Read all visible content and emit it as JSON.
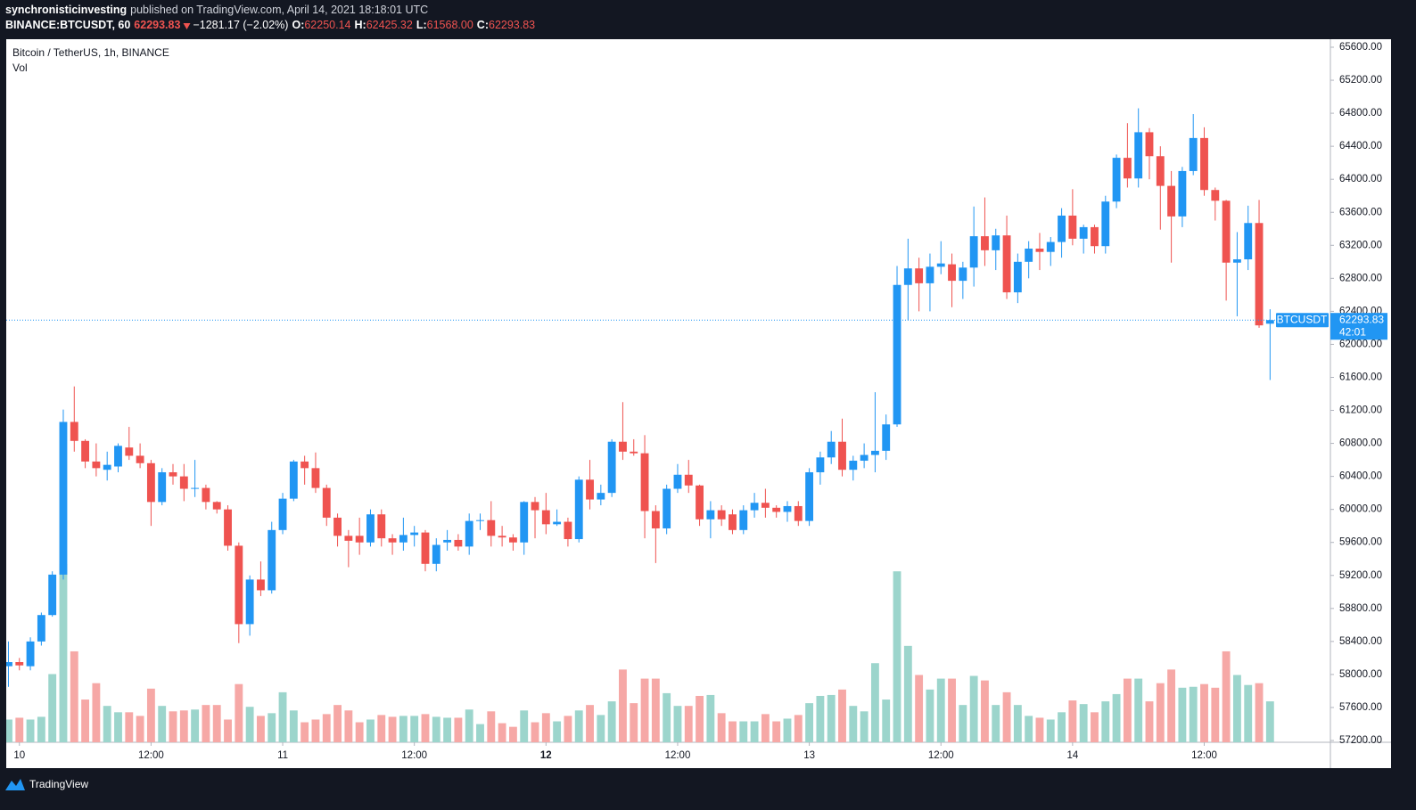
{
  "header": {
    "author": "synchronisticinvesting",
    "published": "published on TradingView.com, April 14, 2021 18:18:01 UTC"
  },
  "legend": {
    "symbol": "BINANCE:BTCUSDT, 60",
    "last": "62293.83",
    "change": "−1281.17 (−2.02%)",
    "ohlc": [
      {
        "label": "O:",
        "value": "62250.14"
      },
      {
        "label": "H:",
        "value": "62425.32"
      },
      {
        "label": "L:",
        "value": "61568.00"
      },
      {
        "label": "C:",
        "value": "62293.83"
      }
    ]
  },
  "footer": "TradingView",
  "chart_data": {
    "type": "candlestick",
    "title": "Bitcoin / TetherUS, 1h, BINANCE",
    "volume_label": "Vol",
    "price_tag": {
      "symbol": "BTCUSDT",
      "countdown": "42:01"
    },
    "up_color": "#2196f3",
    "down_color": "#ef5350",
    "volume_up_color": "#9cd5cc",
    "volume_down_color": "#f6a8a6",
    "xlim": [
      -1.2,
      119.5
    ],
    "xticks": [
      {
        "value": 0,
        "label": "10"
      },
      {
        "value": 12,
        "label": "12:00"
      },
      {
        "value": 24,
        "label": "11"
      },
      {
        "value": 36,
        "label": "12:00"
      },
      {
        "value": 48,
        "label": "12"
      },
      {
        "value": 60,
        "label": "12:00"
      },
      {
        "value": 72,
        "label": "13"
      },
      {
        "value": 84,
        "label": "12:00"
      },
      {
        "value": 96,
        "label": "14"
      },
      {
        "value": 108,
        "label": "12:00"
      }
    ],
    "ylim": [
      57200,
      65600
    ],
    "yticks": [
      {
        "value": 57200,
        "label": "57200.00"
      },
      {
        "value": 57600,
        "label": "57600.00"
      },
      {
        "value": 58000,
        "label": "58000.00"
      },
      {
        "value": 58400,
        "label": "58400.00"
      },
      {
        "value": 58800,
        "label": "58800.00"
      },
      {
        "value": 59200,
        "label": "59200.00"
      },
      {
        "value": 59600,
        "label": "59600.00"
      },
      {
        "value": 60000,
        "label": "60000.00"
      },
      {
        "value": 60400,
        "label": "60400.00"
      },
      {
        "value": 60800,
        "label": "60800.00"
      },
      {
        "value": 61200,
        "label": "61200.00"
      },
      {
        "value": 61600,
        "label": "61600.00"
      },
      {
        "value": 62000,
        "label": "62000.00"
      },
      {
        "value": 62400,
        "label": "62400.00"
      },
      {
        "value": 62800,
        "label": "62800.00"
      },
      {
        "value": 63200,
        "label": "63200.00"
      },
      {
        "value": 63600,
        "label": "63600.00"
      },
      {
        "value": 64000,
        "label": "64000.00"
      },
      {
        "value": 64400,
        "label": "64400.00"
      },
      {
        "value": 64800,
        "label": "64800.00"
      },
      {
        "value": 65200,
        "label": "65200.00"
      },
      {
        "value": 65600,
        "label": "65600.00"
      }
    ],
    "x": [
      -1,
      0,
      1,
      2,
      3,
      4,
      5,
      6,
      7,
      8,
      9,
      10,
      11,
      12,
      13,
      14,
      15,
      16,
      17,
      18,
      19,
      20,
      21,
      22,
      23,
      24,
      25,
      26,
      27,
      28,
      29,
      30,
      31,
      32,
      33,
      34,
      35,
      36,
      37,
      38,
      39,
      40,
      41,
      42,
      43,
      44,
      45,
      46,
      47,
      48,
      49,
      50,
      51,
      52,
      53,
      54,
      55,
      56,
      57,
      58,
      59,
      60,
      61,
      62,
      63,
      64,
      65,
      66,
      67,
      68,
      69,
      70,
      71,
      72,
      73,
      74,
      75,
      76,
      77,
      78,
      79,
      80,
      81,
      82,
      83,
      84,
      85,
      86,
      87,
      88,
      89,
      90,
      91,
      92,
      93,
      94,
      95,
      96,
      97,
      98,
      99,
      100,
      101,
      102,
      103,
      104,
      105,
      106,
      107,
      108,
      109,
      110,
      111,
      112,
      113,
      114
    ],
    "open": [
      58100,
      58150,
      58100,
      58400,
      58720,
      59210,
      61060,
      60830,
      60580,
      60480,
      60520,
      60750,
      60650,
      60560,
      60090,
      60450,
      60400,
      60250,
      60260,
      60090,
      60000,
      59560,
      58610,
      59150,
      59020,
      59750,
      60130,
      60580,
      60500,
      60260,
      59900,
      59680,
      59680,
      59600,
      59940,
      59650,
      59600,
      59690,
      59720,
      59340,
      59600,
      59630,
      59550,
      59860,
      59870,
      59680,
      59660,
      59600,
      60090,
      59990,
      59820,
      59850,
      59640,
      60360,
      60120,
      60200,
      60820,
      60700,
      60680,
      59980,
      59770,
      60250,
      60420,
      60290,
      59880,
      59990,
      59940,
      59750,
      59990,
      60080,
      60020,
      59970,
      60040,
      59860,
      60450,
      60630,
      60820,
      60480,
      60590,
      60660,
      60710,
      61030,
      62720,
      62920,
      62740,
      62940,
      62970,
      62770,
      62930,
      63310,
      63140,
      63320,
      62630,
      63000,
      63160,
      63120,
      63240,
      63560,
      63280,
      63420,
      63190,
      63730,
      64260,
      64010,
      64570,
      64280,
      63920,
      63550,
      64100,
      64500,
      63870,
      63740,
      62990,
      63030,
      63470,
      62250.14
    ],
    "high": [
      58400,
      58200,
      58450,
      58750,
      59250,
      61210,
      61490,
      60850,
      60800,
      60700,
      60800,
      61000,
      60800,
      60600,
      60500,
      60550,
      60550,
      60600,
      60300,
      60100,
      60050,
      59600,
      59200,
      59370,
      59850,
      60200,
      60600,
      60650,
      60690,
      60300,
      59950,
      59750,
      59900,
      60000,
      60000,
      59700,
      59900,
      59800,
      59750,
      59650,
      59750,
      59700,
      59950,
      59950,
      60100,
      59800,
      59700,
      60100,
      60150,
      60200,
      60000,
      59900,
      60400,
      60600,
      60300,
      60850,
      61300,
      60850,
      60900,
      60050,
      60300,
      60550,
      60600,
      60300,
      60100,
      60050,
      60000,
      60050,
      60200,
      60250,
      60050,
      60100,
      60100,
      60500,
      60700,
      60950,
      61100,
      60650,
      60800,
      61420,
      61150,
      62950,
      63280,
      63050,
      63100,
      63250,
      63100,
      63000,
      63670,
      63780,
      63400,
      63560,
      63100,
      63250,
      63350,
      63300,
      63650,
      63880,
      63450,
      63450,
      63800,
      64300,
      64680,
      64860,
      64620,
      64400,
      64100,
      64150,
      64790,
      64630,
      63900,
      63750,
      63360,
      63680,
      63750,
      62425.32
    ],
    "low": [
      57850,
      58050,
      58050,
      58350,
      58700,
      59150,
      60700,
      60500,
      60400,
      60350,
      60450,
      60600,
      60500,
      59800,
      60050,
      60300,
      60100,
      60150,
      60000,
      59950,
      59500,
      58380,
      58470,
      58950,
      58980,
      59700,
      60100,
      60300,
      60200,
      59800,
      59550,
      59300,
      59450,
      59550,
      59550,
      59450,
      59500,
      59550,
      59250,
      59250,
      59500,
      59500,
      59450,
      59750,
      59550,
      59550,
      59500,
      59450,
      59650,
      59700,
      59800,
      59550,
      59600,
      60000,
      60050,
      60150,
      60600,
      60650,
      59650,
      59350,
      59700,
      60200,
      60200,
      59800,
      59650,
      59800,
      59700,
      59700,
      59900,
      59900,
      59900,
      59850,
      59800,
      59800,
      60300,
      60550,
      60400,
      60350,
      60500,
      60450,
      60600,
      61000,
      62290,
      62400,
      62400,
      62850,
      62450,
      62550,
      62700,
      62950,
      62900,
      62550,
      62500,
      62800,
      62900,
      62950,
      63050,
      63200,
      63100,
      63100,
      63100,
      63650,
      63900,
      63900,
      64000,
      63390,
      62990,
      63420,
      64050,
      63800,
      63500,
      62530,
      62340,
      62900,
      62200,
      61568
    ],
    "close": [
      58150,
      58110,
      58400,
      58720,
      59210,
      61060,
      60830,
      60580,
      60500,
      60540,
      60770,
      60650,
      60560,
      60090,
      60450,
      60400,
      60250,
      60260,
      60090,
      60000,
      59560,
      58610,
      59150,
      59020,
      59750,
      60130,
      60580,
      60500,
      60260,
      59900,
      59680,
      59620,
      59600,
      59940,
      59650,
      59600,
      59690,
      59720,
      59340,
      59570,
      59630,
      59550,
      59860,
      59870,
      59680,
      59660,
      59600,
      60090,
      59990,
      59820,
      59850,
      59640,
      60360,
      60120,
      60200,
      60820,
      60700,
      60680,
      59980,
      59770,
      60250,
      60420,
      60290,
      59880,
      59990,
      59880,
      59750,
      59990,
      60080,
      60020,
      59970,
      60040,
      59860,
      60450,
      60630,
      60820,
      60480,
      60590,
      60660,
      60710,
      61030,
      62720,
      62920,
      62740,
      62940,
      62980,
      62770,
      62930,
      63310,
      63140,
      63320,
      62630,
      63000,
      63160,
      63120,
      63240,
      63560,
      63280,
      63420,
      63190,
      63730,
      64260,
      64010,
      64570,
      64280,
      63920,
      63550,
      64100,
      64500,
      63870,
      63740,
      62990,
      63030,
      63470,
      62230,
      62293.83
    ],
    "volume": [
      25,
      27,
      25,
      28,
      75,
      196,
      100,
      47,
      65,
      40,
      33,
      33,
      29,
      59,
      40,
      34,
      35,
      36,
      41,
      41,
      25,
      64,
      39,
      29,
      32,
      55,
      35,
      22,
      25,
      31,
      41,
      35,
      22,
      25,
      30,
      28,
      29,
      29,
      31,
      28,
      27,
      27,
      36,
      20,
      34,
      21,
      17,
      35,
      22,
      32,
      23,
      29,
      35,
      41,
      30,
      45,
      80,
      43,
      70,
      70,
      54,
      40,
      40,
      51,
      52,
      32,
      23,
      23,
      23,
      31,
      23,
      26,
      30,
      43,
      51,
      52,
      58,
      40,
      34,
      87,
      47,
      188,
      106,
      74,
      58,
      70,
      70,
      41,
      73,
      68,
      41,
      55,
      41,
      29,
      27,
      25,
      33,
      46,
      42,
      33,
      45,
      53,
      70,
      70,
      45,
      65,
      80,
      60,
      61,
      64,
      60,
      100,
      74,
      63,
      65,
      45
    ]
  }
}
